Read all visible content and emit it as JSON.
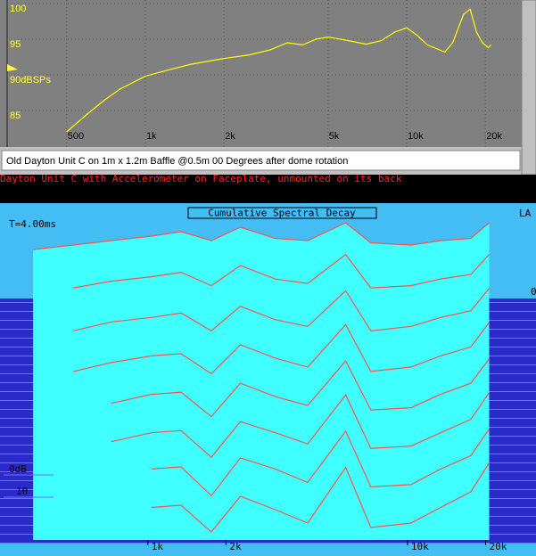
{
  "chart_data": [
    {
      "type": "line",
      "caption": "Old Dayton Unit C on 1m x 1.2m Baffle @0.5m 00 Degrees after dome rotation",
      "x": [
        500,
        600,
        700,
        800,
        1000,
        1200,
        1500,
        2000,
        2500,
        3000,
        3500,
        4000,
        4500,
        5000,
        6000,
        7000,
        8000,
        9000,
        10000,
        11000,
        12000,
        14000,
        15000,
        16500,
        17500,
        18500,
        19500,
        20500,
        21000
      ],
      "series": [
        {
          "color": "#ffff00",
          "values": [
            82,
            84.5,
            86.5,
            88,
            89.8,
            90.6,
            91.5,
            92.3,
            92.8,
            93.5,
            94.5,
            94.2,
            95,
            95.3,
            94.8,
            94.3,
            94.8,
            96,
            96.6,
            95.5,
            94.2,
            93.2,
            94.5,
            98.5,
            99.2,
            96,
            94.5,
            93.8,
            94.2
          ]
        }
      ],
      "xlim": [
        296,
        27550
      ],
      "log_x": true,
      "xticks": [
        500,
        {
          "value": 1000,
          "label": "1k"
        },
        {
          "value": 2000,
          "label": "2k"
        },
        {
          "value": 5000,
          "label": "5k"
        },
        {
          "value": 10000,
          "label": "10k"
        },
        {
          "value": 20000,
          "label": "20k"
        }
      ],
      "ylim": [
        80,
        100.5
      ],
      "yticks": [
        100,
        95,
        {
          "value": 90,
          "label": "90dBSPs"
        },
        85
      ],
      "grid": true
    },
    {
      "type": "waterfall",
      "title": "Dayton Unit C with Accelerometer on Faceplate, unmounted on its back",
      "plot_title": "Cumulative Spectral Decay",
      "time_label": "T=4.00ms",
      "corner_label": "LA",
      "side_label": "0",
      "color": "#40ffff",
      "line_color": "#ff5050",
      "x": [
        350,
        500,
        700,
        1000,
        1300,
        1700,
        2200,
        3000,
        4000,
        5600,
        7000,
        10000,
        13000,
        17000,
        20000
      ],
      "series": [
        {
          "values": [
            -8,
            -6,
            -4,
            -2,
            0,
            -4,
            2,
            -3,
            -4,
            4,
            -5,
            -6,
            -4,
            -3,
            4
          ]
        },
        {
          "values": [
            null,
            -10,
            -7,
            -5,
            -3,
            -9,
            0,
            -6,
            -8,
            5,
            -10,
            -9,
            -6,
            -4,
            5
          ]
        },
        {
          "values": [
            null,
            -14,
            -10,
            -8,
            -6,
            -14,
            -3,
            -9,
            -12,
            4,
            -14,
            -12,
            -8,
            -5,
            5
          ]
        },
        {
          "values": [
            null,
            -17,
            -13,
            -10,
            -9,
            -18,
            -5,
            -11,
            -15,
            4,
            -17,
            -15,
            -10,
            -6,
            5
          ]
        },
        {
          "values": [
            null,
            null,
            -16,
            -12,
            -11,
            -22,
            -7,
            -13,
            -17,
            3,
            -19,
            -18,
            -12,
            -7,
            4
          ]
        },
        {
          "values": [
            null,
            null,
            -18,
            -14,
            -13,
            -25,
            -9,
            -14,
            -19,
            3,
            -21,
            -20,
            -14,
            -8,
            4
          ]
        },
        {
          "values": [
            null,
            null,
            null,
            -15,
            -14,
            -27,
            -10,
            -15,
            -21,
            2,
            -23,
            -22,
            -15,
            -9,
            3
          ]
        },
        {
          "values": [
            null,
            null,
            null,
            -17,
            -16,
            -28,
            -12,
            -18,
            -24,
            1,
            -26,
            -24,
            -17,
            -10,
            3
          ]
        }
      ],
      "xlim": [
        261,
        30300
      ],
      "log_x": true,
      "xticks": [
        {
          "value": 1000,
          "label": "1k"
        },
        {
          "value": 2000,
          "label": "2k"
        },
        {
          "value": 10000,
          "label": "10k"
        },
        {
          "value": 20000,
          "label": "20k"
        }
      ],
      "yticks": [
        {
          "value": 0,
          "label": "0dB"
        },
        {
          "value": -10,
          "label": "10"
        }
      ]
    }
  ]
}
